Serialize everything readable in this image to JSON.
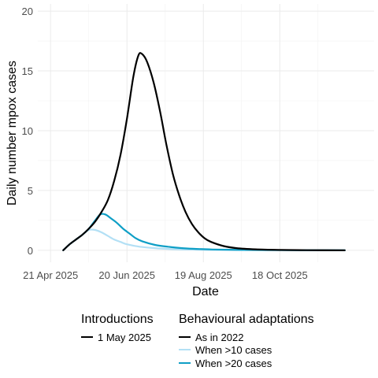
{
  "chart_data": {
    "type": "line",
    "title": "",
    "xlabel": "Date",
    "ylabel": "Daily number mpox cases",
    "xlim": [
      "2025-04-11",
      "2025-12-31"
    ],
    "ylim": [
      -1,
      20.6
    ],
    "x_ticks": [
      {
        "date": "2025-04-21",
        "label": "21 Apr 2025"
      },
      {
        "date": "2025-06-20",
        "label": "20 Jun 2025"
      },
      {
        "date": "2025-08-19",
        "label": "19 Aug 2025"
      },
      {
        "date": "2025-10-18",
        "label": "18 Oct 2025"
      }
    ],
    "y_ticks": [
      0,
      5,
      10,
      15,
      20
    ],
    "grid": true,
    "legend": {
      "placement": "bottom",
      "groups": [
        {
          "title": "Introductions",
          "entries": [
            {
              "label": "1 May 2025",
              "color": "#000000"
            }
          ]
        },
        {
          "title": "Behavioural adaptations",
          "entries": [
            {
              "label": "As in 2022",
              "color": "#000000"
            },
            {
              "label": "When >10 cases",
              "color": "#b3e0f5"
            },
            {
              "label": "When >20 cases",
              "color": "#0f9fc6"
            }
          ]
        }
      ]
    },
    "series": [
      {
        "name": "As in 2022",
        "color": "#000000",
        "points": [
          [
            "2025-05-01",
            0
          ],
          [
            "2025-05-06",
            0.5
          ],
          [
            "2025-05-11",
            0.9
          ],
          [
            "2025-05-16",
            1.3
          ],
          [
            "2025-05-21",
            1.8
          ],
          [
            "2025-05-26",
            2.4
          ],
          [
            "2025-05-31",
            3.2
          ],
          [
            "2025-06-05",
            4.2
          ],
          [
            "2025-06-10",
            5.8
          ],
          [
            "2025-06-15",
            8.0
          ],
          [
            "2025-06-20",
            11.0
          ],
          [
            "2025-06-25",
            14.5
          ],
          [
            "2025-06-29",
            16.3
          ],
          [
            "2025-07-02",
            16.4
          ],
          [
            "2025-07-06",
            15.7
          ],
          [
            "2025-07-11",
            14.0
          ],
          [
            "2025-07-16",
            11.6
          ],
          [
            "2025-07-21",
            8.8
          ],
          [
            "2025-07-26",
            6.4
          ],
          [
            "2025-07-31",
            4.6
          ],
          [
            "2025-08-05",
            3.2
          ],
          [
            "2025-08-10",
            2.2
          ],
          [
            "2025-08-15",
            1.5
          ],
          [
            "2025-08-20",
            1.0
          ],
          [
            "2025-08-25",
            0.7
          ],
          [
            "2025-09-04",
            0.35
          ],
          [
            "2025-09-14",
            0.18
          ],
          [
            "2025-09-29",
            0.08
          ],
          [
            "2025-10-19",
            0.03
          ],
          [
            "2025-11-08",
            0.01
          ],
          [
            "2025-12-08",
            0
          ]
        ]
      },
      {
        "name": "When >10 cases",
        "color": "#b3e0f5",
        "points": [
          [
            "2025-05-01",
            0
          ],
          [
            "2025-05-06",
            0.5
          ],
          [
            "2025-05-11",
            0.9
          ],
          [
            "2025-05-16",
            1.3
          ],
          [
            "2025-05-21",
            1.7
          ],
          [
            "2025-05-26",
            1.7
          ],
          [
            "2025-05-31",
            1.5
          ],
          [
            "2025-06-05",
            1.2
          ],
          [
            "2025-06-10",
            0.9
          ],
          [
            "2025-06-15",
            0.7
          ],
          [
            "2025-06-20",
            0.5
          ],
          [
            "2025-06-30",
            0.3
          ],
          [
            "2025-07-15",
            0.15
          ],
          [
            "2025-08-04",
            0.06
          ],
          [
            "2025-09-03",
            0.02
          ],
          [
            "2025-10-18",
            0.01
          ],
          [
            "2025-12-08",
            0
          ]
        ]
      },
      {
        "name": "When >20 cases",
        "color": "#0f9fc6",
        "points": [
          [
            "2025-05-01",
            0
          ],
          [
            "2025-05-06",
            0.5
          ],
          [
            "2025-05-11",
            0.9
          ],
          [
            "2025-05-16",
            1.3
          ],
          [
            "2025-05-21",
            1.8
          ],
          [
            "2025-05-26",
            2.5
          ],
          [
            "2025-05-30",
            3.0
          ],
          [
            "2025-06-03",
            3.0
          ],
          [
            "2025-06-07",
            2.7
          ],
          [
            "2025-06-12",
            2.3
          ],
          [
            "2025-06-17",
            1.8
          ],
          [
            "2025-06-22",
            1.4
          ],
          [
            "2025-06-27",
            1.0
          ],
          [
            "2025-07-02",
            0.75
          ],
          [
            "2025-07-12",
            0.45
          ],
          [
            "2025-07-22",
            0.3
          ],
          [
            "2025-08-06",
            0.15
          ],
          [
            "2025-08-26",
            0.07
          ],
          [
            "2025-09-25",
            0.03
          ],
          [
            "2025-10-25",
            0.01
          ],
          [
            "2025-12-08",
            0
          ]
        ]
      }
    ]
  }
}
